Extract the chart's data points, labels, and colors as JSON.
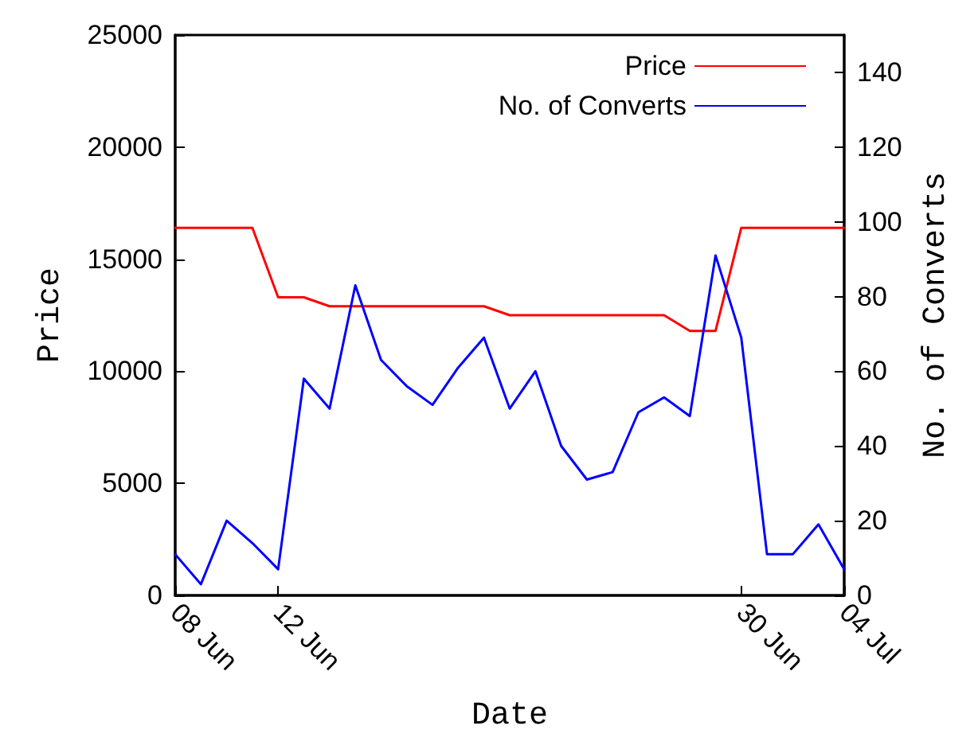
{
  "chart_data": {
    "type": "line",
    "xlabel": "Date",
    "ylabel": "Price",
    "y2label": "No. of Converts",
    "x": [
      "--06-08",
      "--06-09",
      "--06-10",
      "--06-11",
      "--06-12",
      "--06-13",
      "--06-14",
      "--06-15",
      "--06-16",
      "--06-17",
      "--06-18",
      "--06-19",
      "--06-20",
      "--06-21",
      "--06-22",
      "--06-23",
      "--06-24",
      "--06-25",
      "--06-26",
      "--06-27",
      "--06-28",
      "--06-29",
      "--06-30",
      "--07-01",
      "--07-02",
      "--07-03",
      "--07-04"
    ],
    "series": [
      {
        "name": "Price",
        "color": "#ff0000",
        "values": [
          16400,
          16400,
          16400,
          16400,
          13300,
          13300,
          12900,
          12900,
          12900,
          12900,
          12900,
          12900,
          12900,
          12500,
          12500,
          12500,
          12500,
          12500,
          12500,
          12500,
          11800,
          11800,
          16400,
          16400,
          16400,
          16400,
          16400
        ]
      },
      {
        "name": "No. of Converts",
        "color": "#0000ff",
        "axis": "y2",
        "values": [
          11,
          3,
          20,
          14,
          7,
          58,
          50,
          83,
          63,
          56,
          51,
          61,
          69,
          50,
          60,
          40,
          31,
          33,
          49,
          53,
          48,
          91,
          69,
          11,
          11,
          19,
          7
        ]
      }
    ],
    "xlim": [
      "--06-08",
      "--07-04"
    ],
    "xticks": [
      {
        "value": "--06-08",
        "label": "08 Jun"
      },
      {
        "value": "--06-12",
        "label": "12 Jun"
      },
      {
        "value": "--06-30",
        "label": "30 Jun"
      },
      {
        "value": "--07-04",
        "label": "04 Jul"
      }
    ],
    "ylim": [
      0,
      25000
    ],
    "yticks": [
      0,
      5000,
      10000,
      15000,
      20000,
      25000
    ],
    "y2lim": [
      0,
      150
    ],
    "y2ticks": [
      0,
      20,
      40,
      60,
      80,
      100,
      120,
      140
    ],
    "grid": false,
    "legend": "top right",
    "marker": "none",
    "line_style": "solid"
  }
}
